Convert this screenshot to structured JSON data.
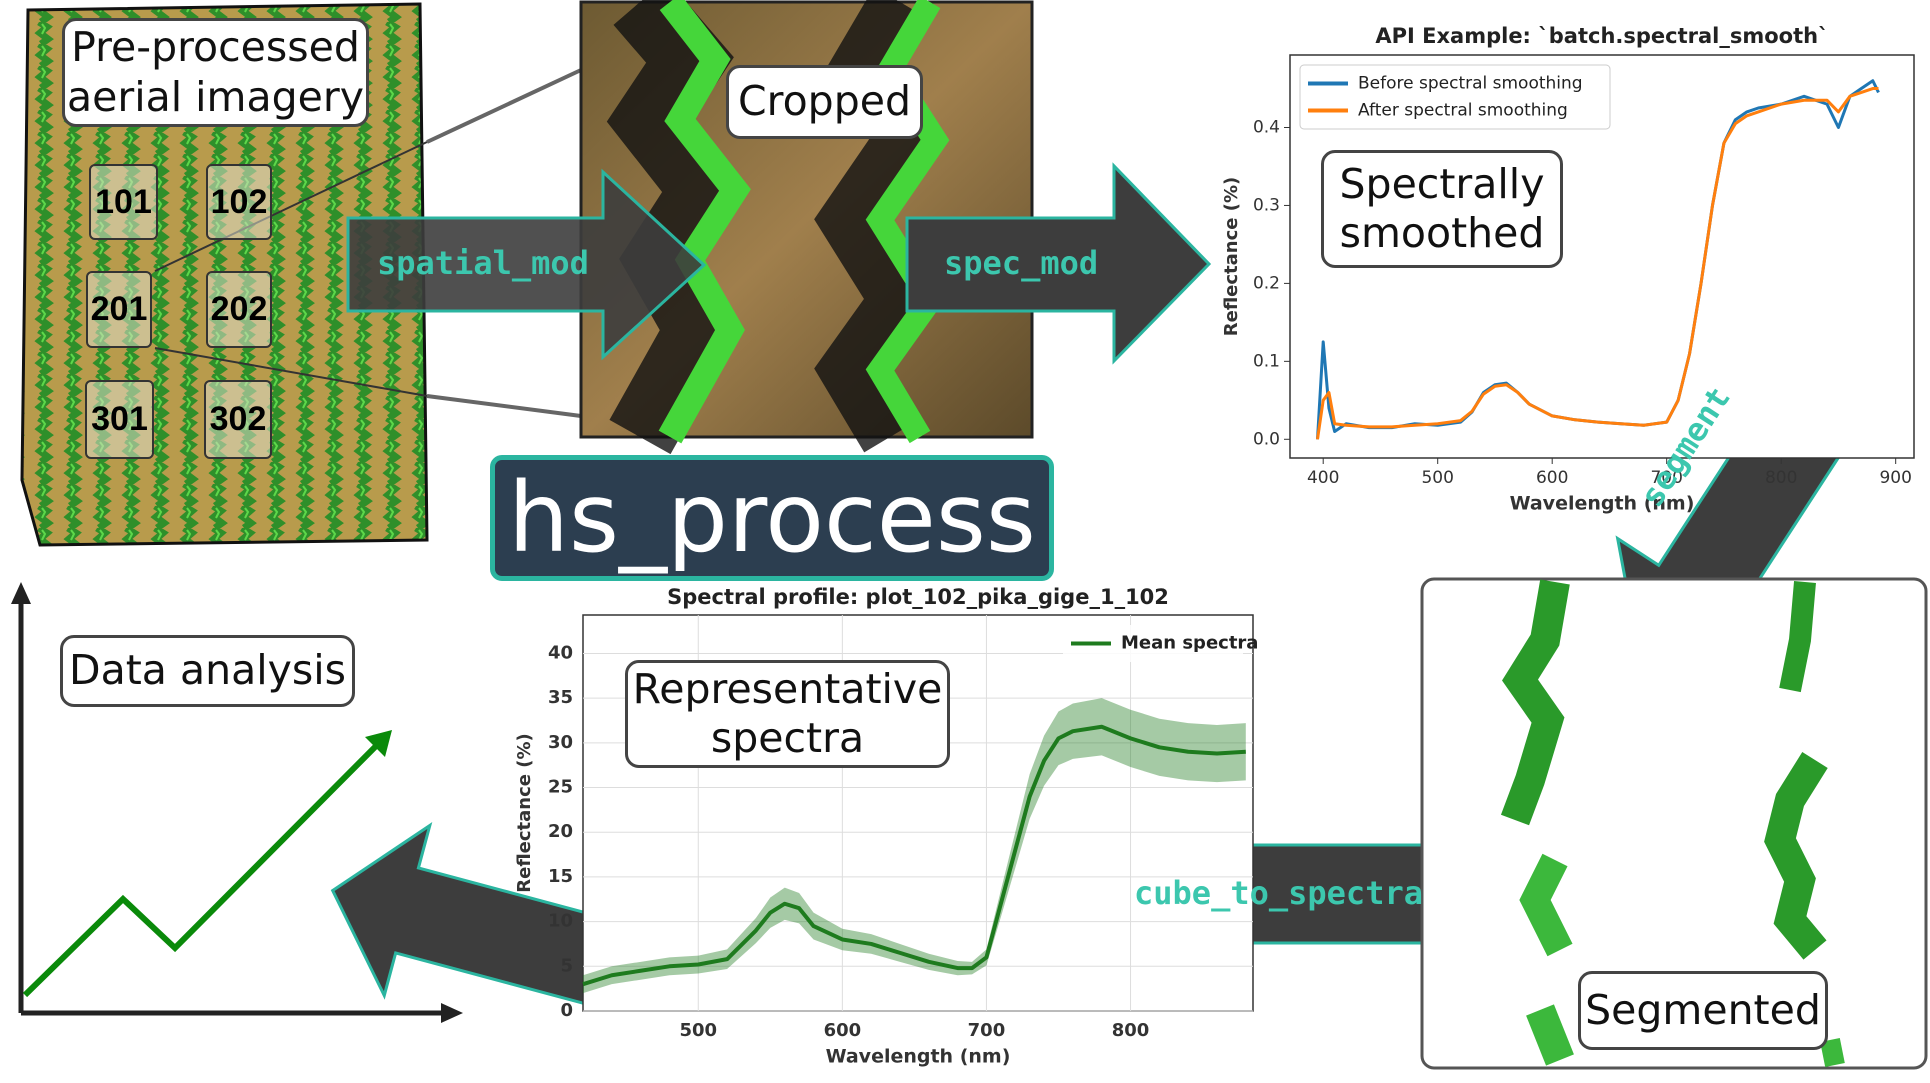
{
  "title": "hs_process",
  "stages": [
    "Pre-processed aerial imagery",
    "Cropped",
    "Spectrally smoothed",
    "Segmented",
    "Representative spectra",
    "Data analysis"
  ],
  "plots": [
    "101",
    "102",
    "201",
    "202",
    "301",
    "302"
  ],
  "arrows": [
    "spatial_mod",
    "spec_mod",
    "segment",
    "cube_to_spectra"
  ],
  "chart_data": [
    {
      "type": "line",
      "title": "API Example: `batch.spectral_smooth`",
      "x_label": "Wavelength (nm)",
      "y_label": "Reflectance (%)",
      "x": [
        395,
        400,
        405,
        410,
        420,
        440,
        460,
        480,
        500,
        520,
        530,
        540,
        550,
        560,
        570,
        580,
        600,
        620,
        640,
        660,
        680,
        700,
        710,
        720,
        730,
        740,
        750,
        760,
        770,
        780,
        800,
        820,
        840,
        850,
        860,
        870,
        880,
        885
      ],
      "series": [
        {
          "name": "Before spectral smoothing",
          "color": "#1f77b4",
          "values": [
            0.0,
            0.125,
            0.04,
            0.01,
            0.02,
            0.015,
            0.015,
            0.02,
            0.018,
            0.022,
            0.035,
            0.06,
            0.07,
            0.072,
            0.06,
            0.045,
            0.03,
            0.025,
            0.022,
            0.02,
            0.018,
            0.022,
            0.05,
            0.11,
            0.2,
            0.3,
            0.38,
            0.41,
            0.42,
            0.425,
            0.43,
            0.44,
            0.43,
            0.4,
            0.44,
            0.45,
            0.46,
            0.445
          ]
        },
        {
          "name": "After spectral smoothing",
          "color": "#ff7f0e",
          "values": [
            0.0,
            0.05,
            0.06,
            0.02,
            0.018,
            0.016,
            0.016,
            0.018,
            0.02,
            0.024,
            0.036,
            0.058,
            0.068,
            0.07,
            0.06,
            0.045,
            0.03,
            0.025,
            0.022,
            0.02,
            0.018,
            0.022,
            0.05,
            0.11,
            0.2,
            0.3,
            0.38,
            0.405,
            0.415,
            0.42,
            0.43,
            0.435,
            0.435,
            0.42,
            0.44,
            0.445,
            0.45,
            0.45
          ]
        }
      ],
      "xlim": [
        371,
        916
      ],
      "xticks": [
        400,
        500,
        600,
        700,
        800,
        900
      ],
      "ylim": [
        -0.024,
        0.493
      ],
      "yticks": [
        {
          "value": 0,
          "label": "0.0"
        },
        0.1,
        0.2,
        0.3,
        0.4
      ],
      "grid": false,
      "legend": "upper left"
    },
    {
      "type": "line",
      "title": "Spectral profile: plot_102_pika_gige_1_102",
      "x_label": "Wavelength (nm)",
      "y_label": "Reflectance (%)",
      "x": [
        420,
        440,
        460,
        480,
        500,
        520,
        540,
        550,
        560,
        570,
        580,
        600,
        620,
        640,
        660,
        680,
        690,
        700,
        710,
        720,
        730,
        740,
        750,
        760,
        780,
        800,
        820,
        840,
        860,
        880
      ],
      "series": [
        {
          "name": "Mean spectra",
          "color": "#1e7b1e",
          "values": [
            3,
            4,
            4.5,
            5,
            5.2,
            5.8,
            9,
            11,
            12,
            11.5,
            9.5,
            8,
            7.5,
            6.5,
            5.5,
            4.8,
            4.8,
            6,
            12,
            18,
            24,
            28,
            30.5,
            31.3,
            31.8,
            30.5,
            29.5,
            29,
            28.8,
            29
          ],
          "errors": [
            1,
            1,
            1,
            1,
            1,
            1.1,
            1.4,
            1.7,
            1.8,
            1.7,
            1.5,
            1.2,
            1.1,
            1,
            0.9,
            0.8,
            0.7,
            0.9,
            1.5,
            2,
            2.5,
            2.8,
            3,
            3.1,
            3.2,
            3.2,
            3.2,
            3.2,
            3.2,
            3.2
          ]
        }
      ],
      "xlim": [
        420,
        885
      ],
      "xticks": [
        500,
        600,
        700,
        800
      ],
      "ylim": [
        0,
        44.3
      ],
      "yticks": [
        0,
        5,
        10,
        15,
        20,
        25,
        30,
        35,
        40
      ],
      "grid": true,
      "legend": "upper right"
    }
  ]
}
